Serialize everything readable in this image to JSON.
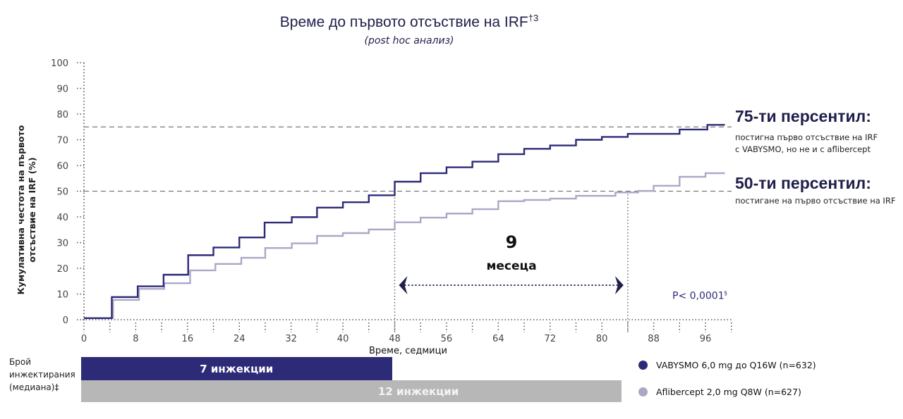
{
  "title": "Време до първото отсъствие на IRF",
  "title_sup": "†3",
  "subtitle": "(post hoc анализ)",
  "chart_data": {
    "type": "line",
    "step": true,
    "xlabel": "Време, седмици",
    "ylabel": "Кумулативна честота на първото отсъствие на IRF (%)",
    "xlim": [
      0,
      100
    ],
    "ylim": [
      0,
      100
    ],
    "x_ticks": [
      0,
      8,
      16,
      24,
      32,
      40,
      48,
      56,
      64,
      72,
      80,
      88,
      96
    ],
    "y_ticks": [
      0,
      10,
      20,
      30,
      40,
      50,
      60,
      70,
      80,
      90,
      100
    ],
    "grid": false,
    "reference_lines": [
      75,
      50
    ],
    "vertical_markers": [
      48,
      84
    ],
    "series": [
      {
        "name": "VABYSMO 6,0 mg до Q16W (n=632)",
        "color": "#2d2a78",
        "points": [
          [
            0,
            0.6
          ],
          [
            4.3,
            8.8
          ],
          [
            8.3,
            13
          ],
          [
            12.3,
            17.5
          ],
          [
            16.1,
            25.1
          ],
          [
            20,
            28.1
          ],
          [
            24,
            32
          ],
          [
            27.9,
            37.8
          ],
          [
            32.1,
            39.9
          ],
          [
            36,
            43.6
          ],
          [
            40,
            45.7
          ],
          [
            44,
            48.4
          ],
          [
            48,
            53.7
          ],
          [
            52,
            57
          ],
          [
            56,
            59.3
          ],
          [
            60,
            61.5
          ],
          [
            64,
            64.4
          ],
          [
            68,
            66.5
          ],
          [
            72,
            67.8
          ],
          [
            76,
            70
          ],
          [
            80,
            71.1
          ],
          [
            84,
            72.3
          ],
          [
            92,
            74
          ],
          [
            96.3,
            75.8
          ],
          [
            99,
            75.8
          ]
        ]
      },
      {
        "name": "Aflibercept 2,0 mg Q8W (n=627)",
        "color": "#aaa8c6",
        "points": [
          [
            0,
            0.6
          ],
          [
            4.5,
            7.7
          ],
          [
            8.5,
            12
          ],
          [
            12.4,
            14.2
          ],
          [
            16.4,
            19.2
          ],
          [
            20.3,
            21.7
          ],
          [
            24.3,
            24.1
          ],
          [
            28,
            27.9
          ],
          [
            32.1,
            29.7
          ],
          [
            36,
            32.6
          ],
          [
            40,
            33.7
          ],
          [
            44,
            35.1
          ],
          [
            48,
            37.9
          ],
          [
            52,
            39.7
          ],
          [
            56,
            41.3
          ],
          [
            60,
            43
          ],
          [
            64,
            46.1
          ],
          [
            68,
            46.6
          ],
          [
            72,
            47.1
          ],
          [
            76,
            48.2
          ],
          [
            82.1,
            49.5
          ],
          [
            85.6,
            50.1
          ],
          [
            88,
            52.1
          ],
          [
            92,
            55.6
          ],
          [
            96,
            57
          ],
          [
            99,
            57
          ]
        ]
      }
    ]
  },
  "annotations": {
    "p75_title": "75-ти персентил:",
    "p75_line1": "постигна първо отсъствие на IRF",
    "p75_line2": "с VABYSMO, но не и с aflibercept",
    "p50_title": "50-ти персентил:",
    "p50_line1": "постигане на първо отсъствие на IRF",
    "gap_value": "9",
    "gap_unit": "месеца",
    "p_value": "P< 0,0001",
    "p_value_sup": "§"
  },
  "injections": {
    "label_line1": "Брой",
    "label_line2": "инжектирания",
    "label_line3": "(медиана)‡",
    "bars": [
      {
        "label": "7 инжекции",
        "color": "#2d2a78",
        "end_week": 48
      },
      {
        "label": "12 инжекции",
        "color": "#b7b7b7",
        "end_week": 83.5
      }
    ]
  },
  "legend": [
    {
      "label": "VABYSMO 6,0 mg до Q16W (n=632)",
      "color": "#2d2a78"
    },
    {
      "label": "Aflibercept 2,0 mg Q8W (n=627)",
      "color": "#aaa8c6"
    }
  ]
}
